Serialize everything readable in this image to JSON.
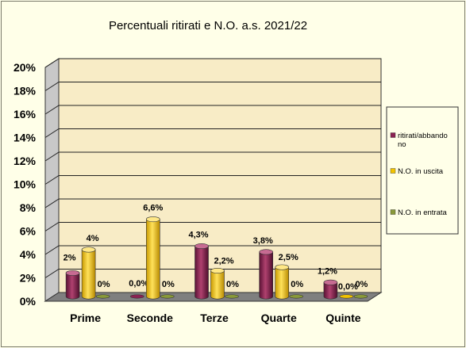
{
  "chart_data": {
    "type": "bar",
    "title": "Percentuali  ritirati  e N.O. a.s. 2021/22",
    "categories": [
      "Prime",
      "Seconde",
      "Terze",
      "Quarte",
      "Quinte"
    ],
    "ylim": [
      0,
      20
    ],
    "yticks": [
      "0%",
      "2%",
      "4%",
      "6%",
      "8%",
      "10%",
      "12%",
      "14%",
      "16%",
      "18%",
      "20%"
    ],
    "grid": true,
    "legend_position": "right",
    "series": [
      {
        "name": "ritirati/abbandono",
        "legend_lines": [
          "ritirati/abbando",
          "no"
        ],
        "color": "#8b2252",
        "values": [
          2,
          0.0,
          4.3,
          3.8,
          1.2
        ],
        "labels": [
          "2%",
          "0,0%",
          "4,3%",
          "3,8%",
          "1,2%"
        ]
      },
      {
        "name": "N.O. in uscita",
        "legend_lines": [
          "N.O. in uscita"
        ],
        "color": "#f2c300",
        "values": [
          4,
          6.6,
          2.2,
          2.5,
          0.0
        ],
        "labels": [
          "4%",
          "6,6%",
          "2,2%",
          "2,5%",
          "0,0%"
        ]
      },
      {
        "name": "N.O. in entrata",
        "legend_lines": [
          "N.O. in entrata"
        ],
        "color": "#8a9a3a",
        "values": [
          0,
          0,
          0,
          0,
          0
        ],
        "labels": [
          "0%",
          "0%",
          "0%",
          "0%",
          "0%"
        ]
      }
    ]
  }
}
